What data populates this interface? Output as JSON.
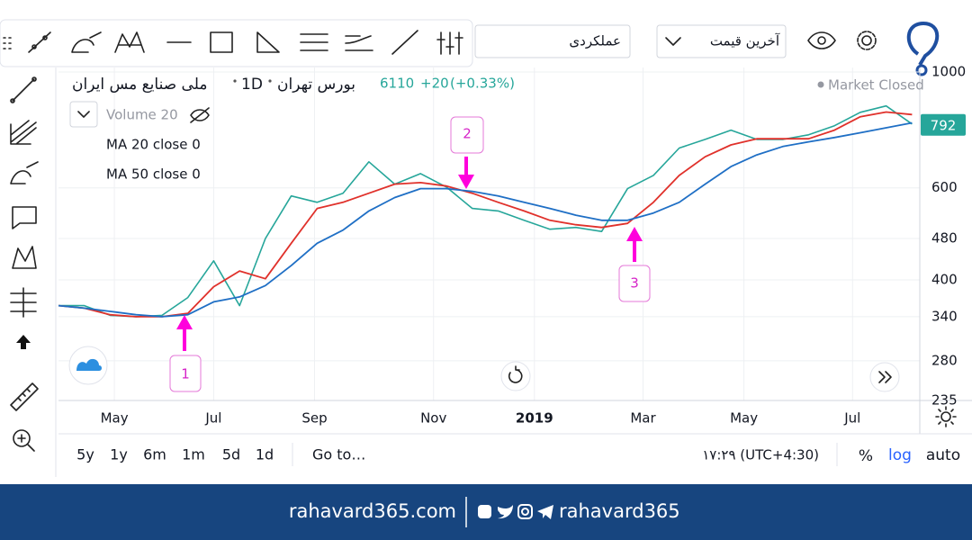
{
  "toolbar": {
    "indicator_input": "عملکردی",
    "price_select": "آخرین قیمت"
  },
  "header": {
    "symbol": "ملی صنایع مس ایران",
    "interval": "1D",
    "exchange": "بورس تهران",
    "last": "6110",
    "change": "+20",
    "change_percent": "(+0.33%)",
    "status": "Market Closed",
    "volume_legend": "Volume 20"
  },
  "chart": {
    "type": "line",
    "yscale": "log",
    "grid": true,
    "ylim": [
      235,
      1020
    ],
    "yticks": [
      235,
      280,
      340,
      400,
      480,
      600,
      1000
    ],
    "xlim": [
      0,
      33.3
    ],
    "xticks": [
      {
        "value": 2.16,
        "label": "May"
      },
      {
        "value": 6.0,
        "label": "Jul"
      },
      {
        "value": 9.9,
        "label": "Sep"
      },
      {
        "value": 14.5,
        "label": "Nov"
      },
      {
        "value": 18.4,
        "label": "2019"
      },
      {
        "value": 22.6,
        "label": "Mar"
      },
      {
        "value": 26.5,
        "label": "May"
      },
      {
        "value": 30.7,
        "label": "Jul"
      }
    ],
    "price": {
      "color": "#26a69a",
      "values": [
        357,
        357,
        342,
        340,
        342,
        370,
        435,
        357,
        480,
        579,
        563,
        586,
        673,
        610,
        639,
        602,
        548,
        542,
        520,
        500,
        504,
        495,
        598,
        634,
        715,
        743,
        774,
        743,
        743,
        758,
        789,
        837,
        861,
        795
      ]
    },
    "series": [
      {
        "name": "MA 20 close 0",
        "color": "#e0312b",
        "values": [
          357,
          353,
          343,
          340,
          340,
          345,
          388,
          416,
          402,
          470,
          548,
          563,
          586,
          610,
          614,
          605,
          586,
          563,
          542,
          520,
          510,
          504,
          513,
          563,
          634,
          688,
          725,
          745,
          745,
          745,
          774,
          821,
          838,
          829
        ]
      },
      {
        "name": "MA 50 close 0",
        "color": "#1f6fc5",
        "values": [
          357,
          353,
          348,
          343,
          340,
          343,
          363,
          371,
          390,
          426,
          470,
          498,
          542,
          575,
          598,
          598,
          591,
          579,
          563,
          548,
          532,
          520,
          520,
          537,
          563,
          610,
          659,
          694,
          720,
          735,
          749,
          765,
          782,
          799
        ]
      }
    ],
    "last_price": 792,
    "annotations": [
      "1",
      "2",
      "3"
    ]
  },
  "range_bar": {
    "ranges": [
      "5y",
      "1y",
      "6m",
      "1m",
      "5d",
      "1d"
    ],
    "goto": "Go to…",
    "clock": "۱۷:۲۹ (UTC+4:30)",
    "percent": "%",
    "log": "log",
    "auto": "auto"
  },
  "footer": {
    "site": "rahavard365.com",
    "handle": "rahavard365"
  }
}
